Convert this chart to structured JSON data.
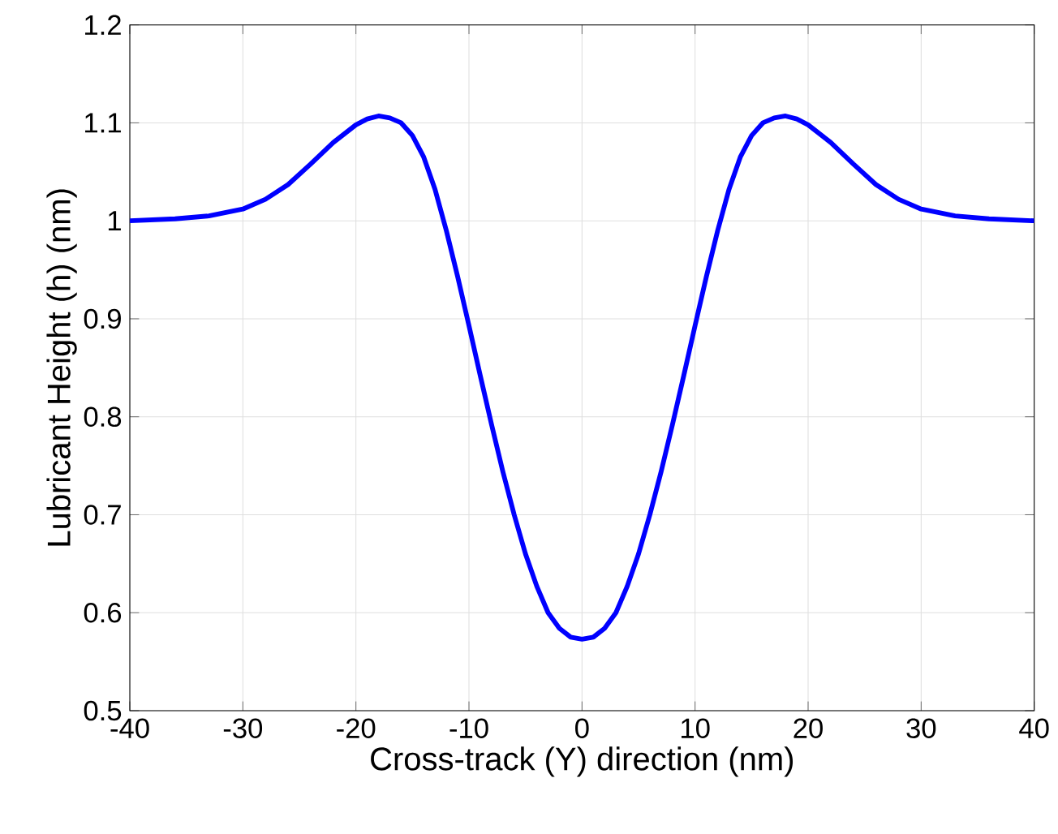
{
  "chart_data": {
    "type": "line",
    "xlabel": "Cross-track (Y) direction (nm)",
    "ylabel": "Lubricant Height (h) (nm)",
    "x": [
      -40,
      -36,
      -33,
      -30,
      -28,
      -26,
      -24,
      -22,
      -20,
      -19,
      -18,
      -17,
      -16,
      -15,
      -14,
      -13,
      -12,
      -11,
      -10,
      -9,
      -8,
      -7,
      -6,
      -5,
      -4,
      -3,
      -2,
      -1,
      0,
      1,
      2,
      3,
      4,
      5,
      6,
      7,
      8,
      9,
      10,
      11,
      12,
      13,
      14,
      15,
      16,
      17,
      18,
      19,
      20,
      22,
      24,
      26,
      28,
      30,
      33,
      36,
      40
    ],
    "series": [
      {
        "color": "#0000ff",
        "values": [
          1.0,
          1.002,
          1.005,
          1.012,
          1.022,
          1.037,
          1.058,
          1.08,
          1.098,
          1.104,
          1.107,
          1.105,
          1.1,
          1.087,
          1.065,
          1.032,
          0.99,
          0.943,
          0.893,
          0.842,
          0.792,
          0.744,
          0.7,
          0.66,
          0.627,
          0.6,
          0.584,
          0.575,
          0.573,
          0.575,
          0.584,
          0.6,
          0.627,
          0.66,
          0.7,
          0.744,
          0.792,
          0.842,
          0.893,
          0.943,
          0.99,
          1.032,
          1.065,
          1.087,
          1.1,
          1.105,
          1.107,
          1.104,
          1.098,
          1.08,
          1.058,
          1.037,
          1.022,
          1.012,
          1.005,
          1.002,
          1.0
        ]
      }
    ],
    "xlim": [
      -40,
      40
    ],
    "ylim": [
      0.5,
      1.2
    ],
    "xticks": [
      -40,
      -30,
      -20,
      -10,
      0,
      10,
      20,
      30,
      40
    ],
    "yticks": [
      0.5,
      0.6,
      0.7,
      0.8,
      0.9,
      1,
      1.1,
      1.2
    ],
    "grid": true,
    "line_style": "solid",
    "marker": "none"
  }
}
